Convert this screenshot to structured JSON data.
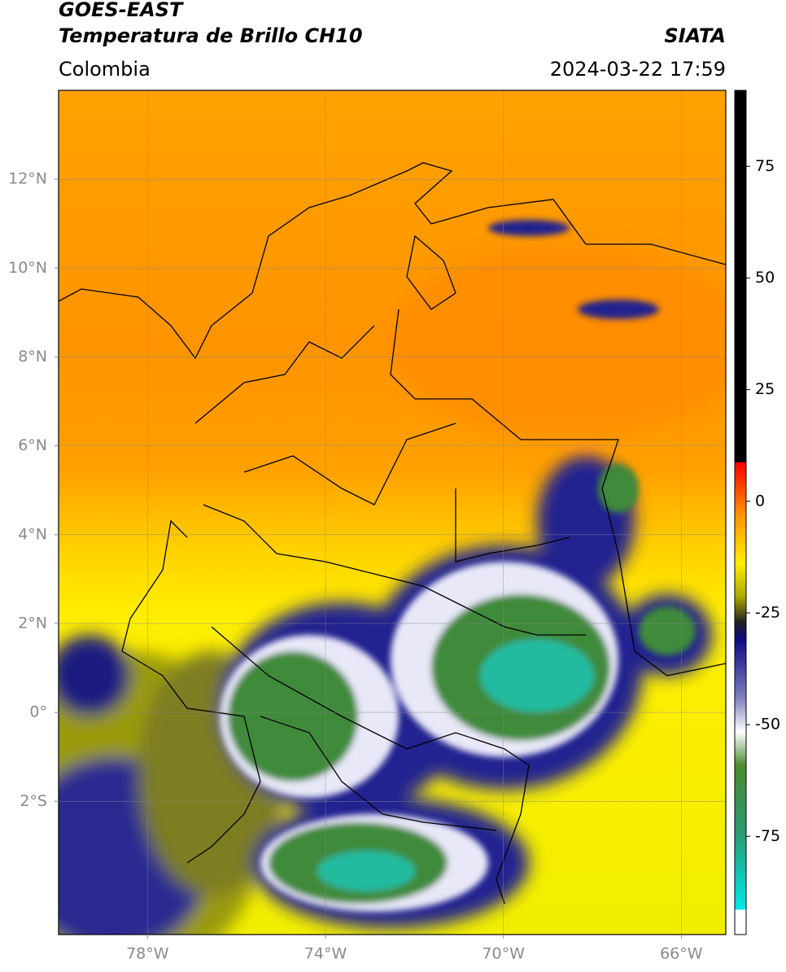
{
  "header": {
    "title": "GOES-EAST",
    "subtitle": "Temperatura de Brillo CH10",
    "region": "Colombia",
    "source": "SIATA",
    "datetime": "2024-03-22 17:59"
  },
  "map": {
    "xlim": [
      -80,
      -65
    ],
    "ylim": [
      -5,
      14
    ],
    "xticks": [
      {
        "value": -78,
        "label": "78°W"
      },
      {
        "value": -74,
        "label": "74°W"
      },
      {
        "value": -70,
        "label": "70°W"
      },
      {
        "value": -66,
        "label": "66°W"
      }
    ],
    "yticks": [
      {
        "value": 12,
        "label": "12°N"
      },
      {
        "value": 10,
        "label": "10°N"
      },
      {
        "value": 8,
        "label": "8°N"
      },
      {
        "value": 6,
        "label": "6°N"
      },
      {
        "value": 4,
        "label": "4°N"
      },
      {
        "value": 2,
        "label": "2°N"
      },
      {
        "value": 0,
        "label": "0°"
      },
      {
        "value": -2,
        "label": "2°S"
      }
    ],
    "grid": true
  },
  "colorbar": {
    "lim": [
      -97,
      92
    ],
    "ticks": [
      75,
      50,
      25,
      0,
      -25,
      -50,
      -75
    ]
  }
}
